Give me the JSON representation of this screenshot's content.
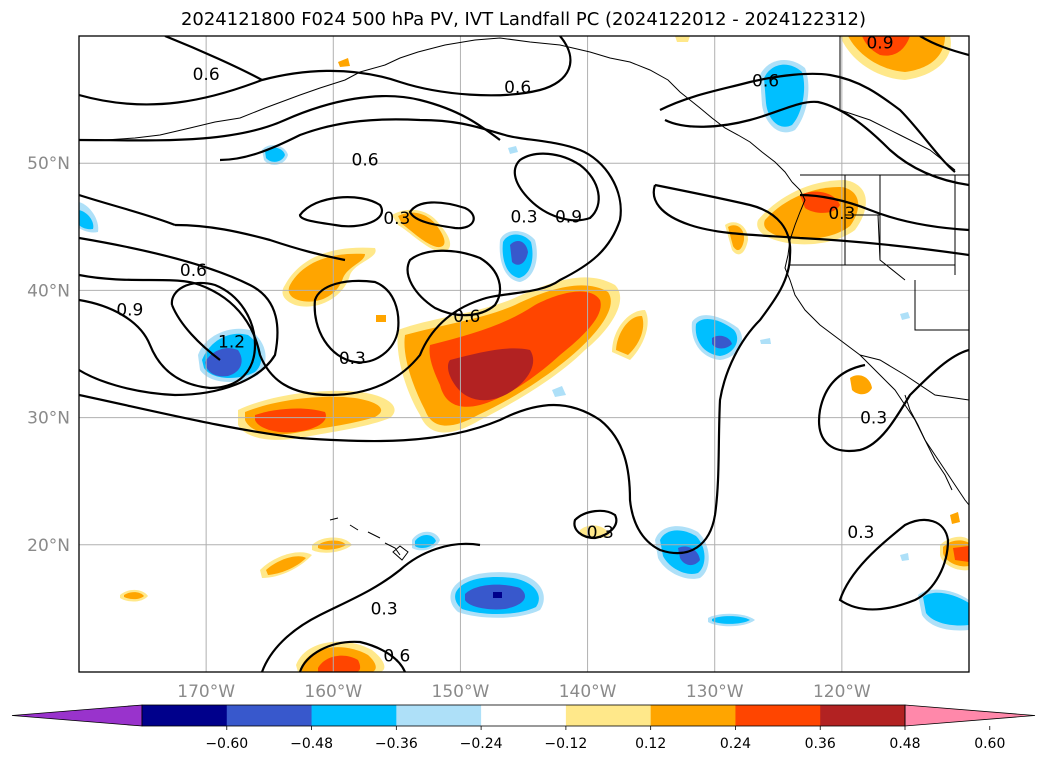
{
  "title": "2024121800 F024 500 hPa PV, IVT Landfall PC (2024122012 - 2024122312)",
  "map": {
    "lon_range": [
      -180,
      -110
    ],
    "lat_range": [
      10,
      60
    ],
    "lat_ticks": [
      {
        "value": 20,
        "label": "20°N"
      },
      {
        "value": 30,
        "label": "30°N"
      },
      {
        "value": 40,
        "label": "40°N"
      },
      {
        "value": 50,
        "label": "50°N"
      }
    ],
    "lon_ticks": [
      {
        "value": -170,
        "label": "170°W"
      },
      {
        "value": -160,
        "label": "160°W"
      },
      {
        "value": -150,
        "label": "150°W"
      },
      {
        "value": -140,
        "label": "140°W"
      },
      {
        "value": -130,
        "label": "130°W"
      },
      {
        "value": -120,
        "label": "120°W"
      }
    ],
    "contour_labels": [
      {
        "text": "0.6",
        "lon": -170,
        "lat": 57.0
      },
      {
        "text": "0.6",
        "lon": -145.5,
        "lat": 56.0
      },
      {
        "text": "0.6",
        "lon": -126,
        "lat": 56.5
      },
      {
        "text": "0.6",
        "lon": -157.5,
        "lat": 50.3
      },
      {
        "text": "0.3",
        "lon": -155,
        "lat": 45.7
      },
      {
        "text": "0.3",
        "lon": -145,
        "lat": 45.8
      },
      {
        "text": "0.9",
        "lon": -141.5,
        "lat": 45.8
      },
      {
        "text": "0.6",
        "lon": -171,
        "lat": 41.6
      },
      {
        "text": "0.9",
        "lon": -176,
        "lat": 38.5
      },
      {
        "text": "0.3",
        "lon": -158.5,
        "lat": 34.7
      },
      {
        "text": "0.6",
        "lon": -149.5,
        "lat": 38.0
      },
      {
        "text": "1.2",
        "lon": -168,
        "lat": 36.0
      },
      {
        "text": "0.3",
        "lon": -139,
        "lat": 21.0
      },
      {
        "text": "0.3",
        "lon": -156,
        "lat": 15.0
      },
      {
        "text": "0.6",
        "lon": -155,
        "lat": 11.3
      },
      {
        "text": "0.3",
        "lon": -117.5,
        "lat": 30.0
      },
      {
        "text": "0.3",
        "lon": -118.5,
        "lat": 21.0
      },
      {
        "text": "0.9",
        "lon": -117,
        "lat": 59.5
      },
      {
        "text": "0.3",
        "lon": -120,
        "lat": 46.1
      }
    ]
  },
  "colorbar": {
    "colors": [
      "#9933cc",
      "#00008b",
      "#3858cc",
      "#00bfff",
      "#aee0f8",
      "#ffffff",
      "#ffe88a",
      "#ffa500",
      "#ff4500",
      "#b22222",
      "#ff88aa"
    ],
    "tick_labels": [
      "−0.60",
      "−0.48",
      "−0.36",
      "−0.24",
      "−0.12",
      "0.12",
      "0.24",
      "0.36",
      "0.48",
      "0.60"
    ]
  }
}
